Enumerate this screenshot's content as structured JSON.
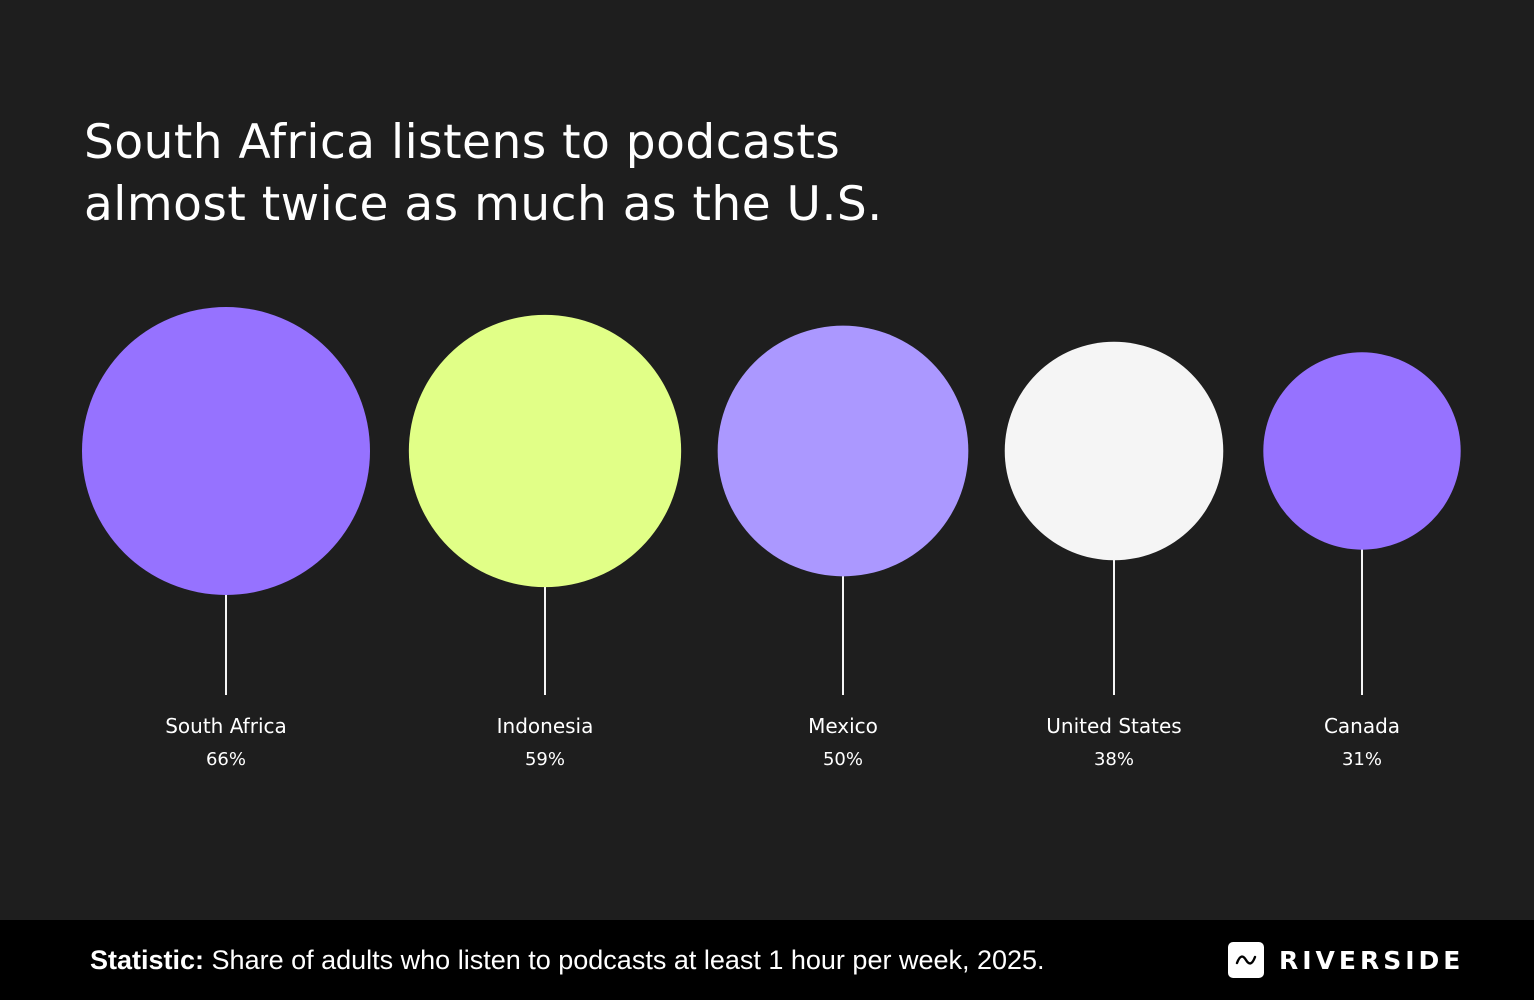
{
  "title": {
    "line1": "South Africa listens to podcasts",
    "line2": "almost twice as much as the U.S."
  },
  "chart_data": {
    "type": "bubble",
    "unit": "%",
    "categories": [
      "South Africa",
      "Indonesia",
      "Mexico",
      "United States",
      "Canada"
    ],
    "values": [
      66,
      59,
      50,
      38,
      31
    ],
    "value_labels": [
      "66%",
      "59%",
      "50%",
      "38%",
      "31%"
    ],
    "colors": [
      "#9672ff",
      "#e1ff87",
      "#ab98ff",
      "#f5f5f5",
      "#9672ff"
    ],
    "legend": "none",
    "grid": false
  },
  "footer": {
    "statistic_label": "Statistic:",
    "statistic_text": "Share of adults who listen to podcasts at least 1 hour per week, 2025."
  },
  "brand": {
    "name": "RIVERSIDE",
    "icon": "riverside-wave-icon"
  },
  "colors": {
    "background": "#1e1e1e",
    "footer_background": "#000000",
    "text": "#ffffff",
    "stem": "#f5f5f5"
  }
}
